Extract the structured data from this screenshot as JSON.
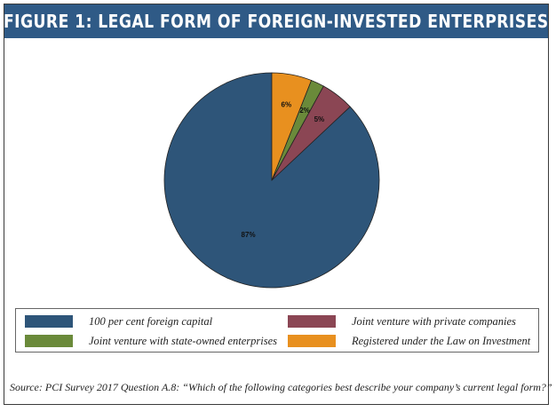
{
  "title": "FIGURE 1: LEGAL FORM OF FOREIGN-INVESTED ENTERPRISES",
  "source": "Source: PCI Survey 2017 Question A.8: “Which of the following categories best describe your company’s current legal form?”",
  "chart_data": {
    "type": "pie",
    "slices": [
      {
        "name": "100 per cent foreign capital",
        "value": 87,
        "label": "87%",
        "color": "#2e5579"
      },
      {
        "name": "Joint venture with private companies",
        "value": 5,
        "label": "5%",
        "color": "#8b4654"
      },
      {
        "name": "Joint venture with state-owned enterprises",
        "value": 2,
        "label": "2%",
        "color": "#6a8a3a"
      },
      {
        "name": "Registered under the Law on Investment",
        "value": 6,
        "label": "6%",
        "color": "#e8901f"
      }
    ],
    "legend_position": "bottom"
  }
}
